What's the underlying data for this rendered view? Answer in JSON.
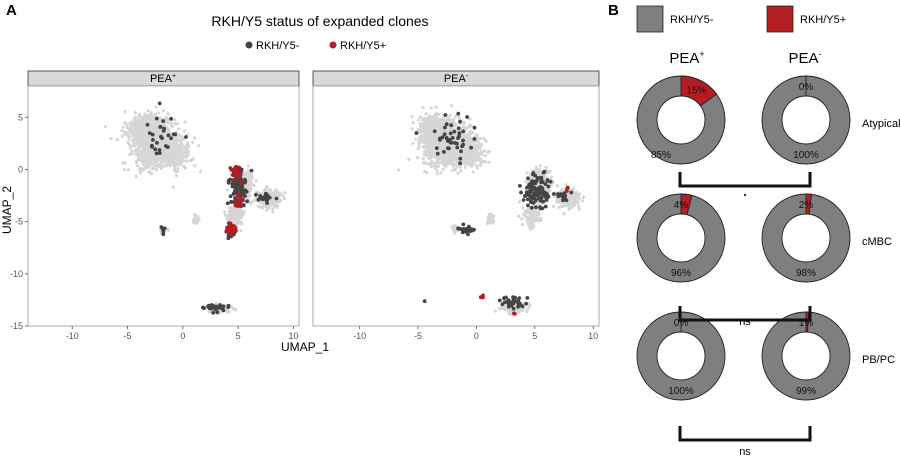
{
  "panel_a": {
    "letter": "A",
    "title": "RKH/Y5 status of expanded clones",
    "legend": [
      {
        "label": "RKH/Y5-",
        "color": "#444444"
      },
      {
        "label": "RKH/Y5+",
        "color": "#b41e23"
      }
    ],
    "background_color": "#d6d6d6",
    "xlabel": "UMAP_1",
    "ylabel": "UMAP_2",
    "xticks": [
      -10,
      -5,
      0,
      5,
      10
    ],
    "yticks": [
      5,
      0,
      -5,
      -10,
      -15
    ],
    "facets": [
      {
        "base": "PEA",
        "sup": "+"
      },
      {
        "base": "PEA",
        "sup": "-"
      }
    ]
  },
  "panel_b": {
    "letter": "B",
    "legend": [
      {
        "label": "RKH/Y5-",
        "color": "#7f7f7f"
      },
      {
        "label": "RKH/Y5+",
        "color": "#b41e23"
      }
    ],
    "columns": [
      {
        "base": "PEA",
        "sup": "+"
      },
      {
        "base": "PEA",
        "sup": "-"
      }
    ],
    "rows": [
      "Atypical",
      "cMBC",
      "PB/PC"
    ],
    "significance": [
      "ns",
      "ns"
    ]
  },
  "chart_data": [
    {
      "type": "scatter",
      "title": "RKH/Y5 status of expanded clones",
      "xlabel": "UMAP_1",
      "ylabel": "UMAP_2",
      "xlim": [
        -14,
        10.5
      ],
      "ylim": [
        -15,
        8
      ],
      "grid": false,
      "legend_position": "top",
      "facets": [
        "PEA+",
        "PEA-"
      ],
      "series": [
        {
          "name": "RKH/Y5-",
          "color": "#444444"
        },
        {
          "name": "RKH/Y5+",
          "color": "#b41e23"
        }
      ]
    },
    {
      "type": "pie",
      "columns": [
        "PEA+",
        "PEA-"
      ],
      "rows": [
        "Atypical",
        "cMBC",
        "PB/PC"
      ],
      "categories": [
        "RKH/Y5-",
        "RKH/Y5+"
      ],
      "values": {
        "Atypical": {
          "PEA+": [
            85,
            15
          ],
          "PEA-": [
            100,
            0
          ]
        },
        "cMBC": {
          "PEA+": [
            96,
            4
          ],
          "PEA-": [
            98,
            2
          ]
        },
        "PB/PC": {
          "PEA+": [
            100,
            0
          ],
          "PEA-": [
            99,
            1
          ]
        }
      },
      "labels": {
        "Atypical": {
          "PEA+": [
            "85%",
            "15%"
          ],
          "PEA-": [
            "100%",
            "0%"
          ]
        },
        "cMBC": {
          "PEA+": [
            "96%",
            "4%"
          ],
          "PEA-": [
            "98%",
            "2%"
          ]
        },
        "PB/PC": {
          "PEA+": [
            "100%",
            "0%"
          ],
          "PEA-": [
            "99%",
            "1%"
          ]
        }
      }
    }
  ]
}
